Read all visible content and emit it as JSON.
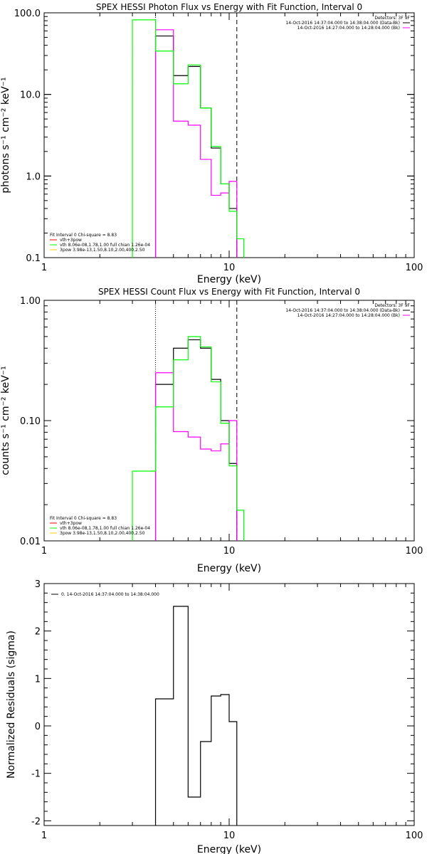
{
  "figure": {
    "background": "#ffffff"
  },
  "chart_data": [
    {
      "type": "line",
      "step": true,
      "title": "SPEX HESSI Photon Flux vs Energy with Fit Function, Interval 0",
      "xlabel": "Energy (keV)",
      "ylabel": "photons s⁻¹ cm⁻² keV⁻¹",
      "xscale": "log",
      "yscale": "log",
      "xlim": [
        1,
        100
      ],
      "ylim": [
        0.1,
        100
      ],
      "x_ticks": [
        1,
        10,
        100
      ],
      "x_tick_labels": [
        "1",
        "10",
        "100"
      ],
      "y_ticks": [
        0.1,
        1,
        10,
        100
      ],
      "y_tick_labels": [
        "0.1",
        "1.0",
        "10.0",
        "100.0"
      ],
      "grid": false,
      "series": [
        {
          "name": "Black",
          "color": "#000000",
          "edges": [
            3,
            4,
            5,
            6,
            7,
            8,
            9,
            10,
            11
          ],
          "values": [
            null,
            52,
            17,
            22,
            6.8,
            2.2,
            0.8,
            0.4
          ]
        },
        {
          "name": "Magenta",
          "color": "#ff00ff",
          "edges": [
            4,
            5,
            6,
            7,
            8,
            9,
            10,
            11
          ],
          "values": [
            62,
            4.7,
            4.2,
            1.6,
            0.58,
            0.62,
            0.86
          ]
        },
        {
          "name": "Green",
          "color": "#00ff00",
          "edges": [
            3,
            4,
            5,
            6,
            7,
            8,
            9,
            10,
            11,
            12
          ],
          "values": [
            82,
            34,
            13.5,
            23,
            6.8,
            2.3,
            0.8,
            0.37,
            0.17
          ]
        }
      ],
      "vlines": [
        {
          "x": 4.0,
          "style": "dotted"
        },
        {
          "x": 11.0,
          "style": "dashed"
        }
      ],
      "legend_top_right": [
        {
          "text": "Detectors: 3F 9F",
          "color": "#000000",
          "line": false
        },
        {
          "text": "14-Oct-2016 14:37:04.000 to 14:38:04.000 (Data-Bk)",
          "color": "#000000",
          "line": true
        },
        {
          "text": "14-Oct-2016 14:27:04.000 to 14:28:04.000 (Bk)",
          "color": "#ff00ff",
          "line": true
        }
      ],
      "legend_bottom_left": [
        {
          "text": "Fit Interval 0   Chi-square = 8.83",
          "color": "#000000",
          "line": false
        },
        {
          "text": "vth+3pow",
          "color": "#ff0000",
          "line": true
        },
        {
          "text": "vth 8.06e-08,1.78,1.00  full chian 1.26e-04",
          "color": "#00ff00",
          "line": true
        },
        {
          "text": "3pow 3.98e-13,1.50,8.10,2.00,400,2.50",
          "color": "#ffcc00",
          "line": true
        }
      ]
    },
    {
      "type": "line",
      "step": true,
      "title": "SPEX HESSI Count Flux vs Energy with Fit Function, Interval 0",
      "xlabel": "Energy (keV)",
      "ylabel": "counts s⁻¹ cm⁻² keV⁻¹",
      "xscale": "log",
      "yscale": "log",
      "xlim": [
        1,
        100
      ],
      "ylim": [
        0.01,
        1
      ],
      "x_ticks": [
        1,
        10,
        100
      ],
      "x_tick_labels": [
        "1",
        "10",
        "100"
      ],
      "y_ticks": [
        0.01,
        0.1,
        1
      ],
      "y_tick_labels": [
        "0.01",
        "0.10",
        "1.00"
      ],
      "grid": false,
      "series": [
        {
          "name": "Black",
          "color": "#000000",
          "edges": [
            3,
            4,
            5,
            6,
            7,
            8,
            9,
            10,
            11
          ],
          "values": [
            null,
            0.2,
            0.4,
            0.47,
            0.4,
            0.22,
            0.1,
            0.044
          ]
        },
        {
          "name": "Magenta",
          "color": "#ff00ff",
          "edges": [
            4,
            5,
            6,
            7,
            8,
            9,
            10,
            11
          ],
          "values": [
            0.25,
            0.081,
            0.073,
            0.058,
            0.056,
            0.064,
            0.1
          ]
        },
        {
          "name": "Green",
          "color": "#00ff00",
          "edges": [
            3,
            4,
            5,
            6,
            7,
            8,
            9,
            10,
            11,
            12
          ],
          "values": [
            0.038,
            0.13,
            0.32,
            0.5,
            0.41,
            0.21,
            0.095,
            0.042,
            0.018
          ]
        }
      ],
      "vlines": [
        {
          "x": 4.0,
          "style": "dotted"
        },
        {
          "x": 11.0,
          "style": "dashed"
        }
      ],
      "legend_top_right": [
        {
          "text": "Detectors: 3F 9F",
          "color": "#000000",
          "line": false
        },
        {
          "text": "14-Oct-2016 14:37:04.000 to 14:38:04.000 (Data-Bk)",
          "color": "#000000",
          "line": true
        },
        {
          "text": "14-Oct-2016 14:27:04.000 to 14:28:04.000 (Bk)",
          "color": "#ff00ff",
          "line": true
        }
      ],
      "legend_bottom_left": [
        {
          "text": "Fit Interval 0   Chi-square = 8.83",
          "color": "#000000",
          "line": false
        },
        {
          "text": "vth+3pow",
          "color": "#ff0000",
          "line": true
        },
        {
          "text": "vth 8.06e-08,1.78,1.00  full chian 1.26e-04",
          "color": "#00ff00",
          "line": true
        },
        {
          "text": "3pow 3.98e-13,1.50,8.10,2.00,400,2.50",
          "color": "#ffcc00",
          "line": true
        }
      ]
    },
    {
      "type": "line",
      "step": true,
      "title": "",
      "xlabel": "Energy (keV)",
      "ylabel": "Normalized Residuals (sigma)",
      "xscale": "log",
      "yscale": "linear",
      "xlim": [
        1,
        100
      ],
      "ylim": [
        -2.1,
        3
      ],
      "x_ticks": [
        1,
        10,
        100
      ],
      "x_tick_labels": [
        "1",
        "10",
        "100"
      ],
      "y_ticks": [
        -2,
        -1,
        0,
        1,
        2,
        3
      ],
      "y_tick_labels": [
        "-2",
        "-1",
        "0",
        "1",
        "2",
        "3"
      ],
      "grid": false,
      "series": [
        {
          "name": "Residuals",
          "color": "#000000",
          "edges": [
            4,
            5,
            6,
            7,
            8,
            9,
            10,
            11
          ],
          "values": [
            0.57,
            2.52,
            -1.5,
            -0.33,
            0.63,
            0.66,
            0.09
          ]
        }
      ],
      "vlines": [],
      "legend_top_right": [],
      "legend_bottom_left": [],
      "legend_top_left": [
        {
          "text": "0. 14-Oct-2016 14:37:04.000 to 14:38:04.000",
          "color": "#000000",
          "line": true
        }
      ]
    }
  ]
}
